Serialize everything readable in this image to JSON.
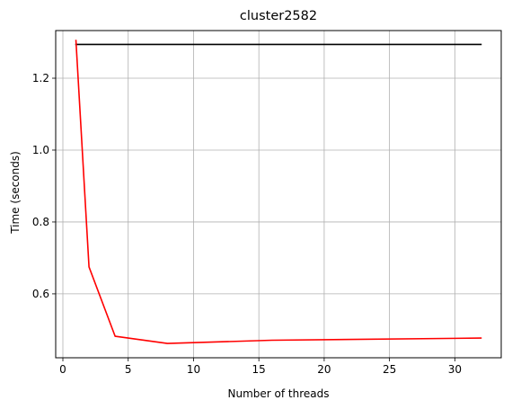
{
  "chart_data": {
    "type": "line",
    "title": "cluster2582",
    "xlabel": "Number of threads",
    "ylabel": "Time (seconds)",
    "xlim": [
      -0.55,
      33.55
    ],
    "ylim": [
      0.4222,
      1.3326
    ],
    "x_ticks": [
      0,
      5,
      10,
      15,
      20,
      25,
      30
    ],
    "x_tick_labels": [
      "0",
      "5",
      "10",
      "15",
      "20",
      "25",
      "30"
    ],
    "y_ticks": [
      0.6,
      0.8,
      1.0,
      1.2
    ],
    "y_tick_labels": [
      "0.6",
      "0.8",
      "1.0",
      "1.2"
    ],
    "grid": true,
    "legend": false,
    "series": [
      {
        "color": "#000000",
        "x": [
          1,
          32
        ],
        "y": [
          1.294,
          1.294
        ]
      },
      {
        "color": "#ff0000",
        "x": [
          1,
          2,
          4,
          8,
          16,
          32
        ],
        "y": [
          1.305,
          0.675,
          0.482,
          0.462,
          0.471,
          0.477
        ]
      }
    ]
  }
}
